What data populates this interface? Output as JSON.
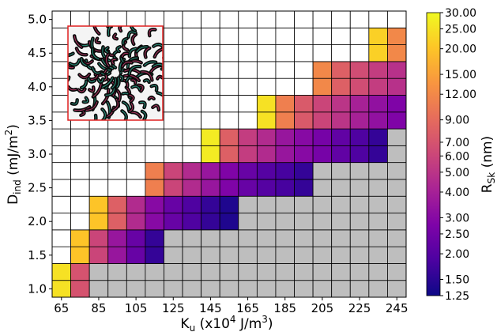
{
  "chart_data": {
    "type": "heatmap",
    "xlabel_main": "K",
    "xlabel_sub": "u",
    "xlabel_rest": " (x10",
    "xlabel_exp": "4",
    "xlabel_unit": " J/m",
    "xlabel_unit_exp": "3",
    "xlabel_close": ")",
    "ylabel_main": "D",
    "ylabel_sub": "ind",
    "ylabel_rest": " (mJ/m",
    "ylabel_exp": "2",
    "ylabel_close": ")",
    "x_tick_labels": [
      "65",
      "85",
      "105",
      "125",
      "145",
      "165",
      "185",
      "205",
      "225",
      "245"
    ],
    "y_tick_labels": [
      "1.0",
      "1.5",
      "2.0",
      "2.5",
      "3.0",
      "3.5",
      "4.0",
      "4.5",
      "5.0"
    ],
    "x_values": [
      65,
      75,
      85,
      95,
      105,
      115,
      125,
      135,
      145,
      155,
      165,
      175,
      185,
      195,
      205,
      215,
      225,
      235,
      245
    ],
    "y_values": [
      1.0,
      1.25,
      1.5,
      1.75,
      2.0,
      2.25,
      2.5,
      2.75,
      3.0,
      3.25,
      3.5,
      3.75,
      4.0,
      4.25,
      4.5,
      4.75,
      5.0
    ],
    "rows": [
      {
        "y": 1.0,
        "start": 0,
        "grey_from": 2,
        "values": [
          25,
          7
        ]
      },
      {
        "y": 1.5,
        "start": 1,
        "grey_from": 6,
        "values": [
          20,
          6,
          3.5,
          2.3,
          1.6
        ]
      },
      {
        "y": 2.0,
        "start": 2,
        "grey_from": 10,
        "values": [
          20,
          8,
          4.5,
          3,
          2.3,
          1.9,
          1.6,
          1.4
        ]
      },
      {
        "y": 2.5,
        "start": 5,
        "grey_from": 14,
        "values": [
          11,
          6,
          4.5,
          3.5,
          2.8,
          2.3,
          2,
          1.8,
          1.6
        ]
      },
      {
        "y": 3.0,
        "start": 8,
        "grey_from": 18,
        "values": [
          27,
          8,
          5.5,
          4.5,
          3.5,
          3,
          2.6,
          2.2,
          1.9,
          1.6
        ]
      },
      {
        "y": 3.5,
        "start": 11,
        "grey_from": 19,
        "values": [
          25,
          11,
          7.5,
          6,
          5,
          4,
          3.3,
          2.8
        ]
      },
      {
        "y": 4.0,
        "start": 14,
        "grey_from": 19,
        "values": [
          12,
          8,
          6.5,
          5.5,
          4.8
        ]
      },
      {
        "y": 4.5,
        "start": 17,
        "grey_from": 19,
        "values": [
          22,
          12
        ]
      },
      {
        "y": 5.0,
        "start": 19,
        "grey_from": 19,
        "values": []
      }
    ],
    "colorbar": {
      "label_main": "R",
      "label_sub": "Sk",
      "label_rest": " (nm)",
      "scale": "log",
      "range": [
        1.25,
        30
      ],
      "ticks": [
        30,
        25,
        20,
        15,
        12,
        9,
        7,
        6,
        5,
        4,
        3,
        2.5,
        2,
        1.5,
        1.25
      ],
      "tick_labels": [
        "30.00",
        "25.00",
        "20.00",
        "15.00",
        "12.00",
        "9.00",
        "7.00",
        "6.00",
        "5.00",
        "4.00",
        "3.00",
        "2.50",
        "2.00",
        "1.50",
        "1.25"
      ],
      "colormap": "plasma"
    },
    "inset": "skyrmion-labyrinth-image",
    "grid": true,
    "empty_color": "#ffffff",
    "no_skyrmion_color": "#bebebe"
  }
}
